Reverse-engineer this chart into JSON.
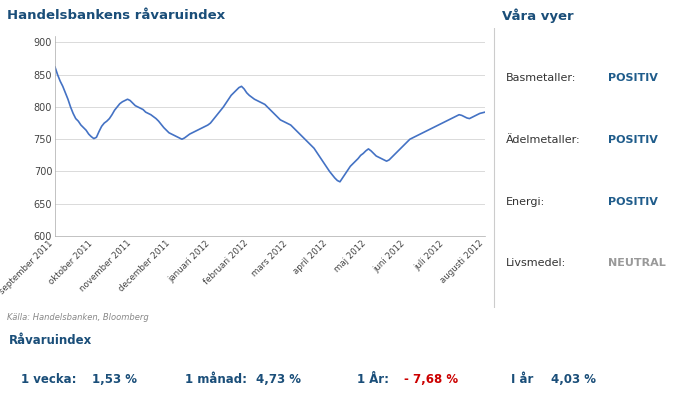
{
  "title_chart": "Handelsbankens råvaruindex",
  "title_right": "Våra vyer",
  "source_text": "Källa: Handelsbanken, Bloomberg",
  "bottom_title": "Råvaruindex",
  "right_panel": [
    {
      "label": "Basmetaller:",
      "value": "POSITIV",
      "value_color": "#1F5C8B"
    },
    {
      "label": "Ädelmetaller:",
      "value": "POSITIV",
      "value_color": "#1F5C8B"
    },
    {
      "label": "Energi:",
      "value": "POSITIV",
      "value_color": "#1F5C8B"
    },
    {
      "label": "Livsmedel:",
      "value": "NEUTRAL",
      "value_color": "#999999"
    }
  ],
  "line_color": "#4472C4",
  "line_width": 1.2,
  "bg_color": "#FFFFFF",
  "header_bg": "#C9DCF0",
  "bottom_bar_bg": "#C9DCF0",
  "plot_bg": "#FFFFFF",
  "grid_color": "#CCCCCC",
  "ylim": [
    600,
    910
  ],
  "yticks": [
    600,
    650,
    700,
    750,
    800,
    850,
    900
  ],
  "x_labels": [
    "september 2011",
    "oktober 2011",
    "november 2011",
    "december 2011",
    "januari 2012",
    "februari 2012",
    "mars 2012",
    "april 2012",
    "maj 2012",
    "juni 2012",
    "juli 2012",
    "augusti 2012"
  ],
  "y_data": [
    862,
    850,
    840,
    832,
    822,
    812,
    800,
    790,
    782,
    778,
    772,
    768,
    764,
    758,
    754,
    751,
    753,
    762,
    770,
    775,
    778,
    782,
    788,
    795,
    800,
    805,
    808,
    810,
    812,
    810,
    806,
    802,
    800,
    798,
    796,
    792,
    790,
    788,
    785,
    782,
    778,
    773,
    768,
    764,
    760,
    758,
    756,
    754,
    752,
    750,
    752,
    755,
    758,
    760,
    762,
    764,
    766,
    768,
    770,
    772,
    775,
    780,
    785,
    790,
    795,
    800,
    806,
    812,
    818,
    822,
    826,
    830,
    832,
    828,
    822,
    818,
    815,
    812,
    810,
    808,
    806,
    804,
    800,
    796,
    792,
    788,
    784,
    780,
    778,
    776,
    774,
    772,
    768,
    764,
    760,
    756,
    752,
    748,
    744,
    740,
    736,
    730,
    724,
    718,
    712,
    706,
    700,
    695,
    690,
    686,
    684,
    690,
    696,
    702,
    708,
    712,
    716,
    720,
    725,
    728,
    732,
    735,
    732,
    728,
    724,
    722,
    720,
    718,
    716,
    718,
    722,
    726,
    730,
    734,
    738,
    742,
    746,
    750,
    752,
    754,
    756,
    758,
    760,
    762,
    764,
    766,
    768,
    770,
    772,
    774,
    776,
    778,
    780,
    782,
    784,
    786,
    788,
    787,
    785,
    783,
    782,
    784,
    786,
    788,
    790,
    791,
    792
  ]
}
